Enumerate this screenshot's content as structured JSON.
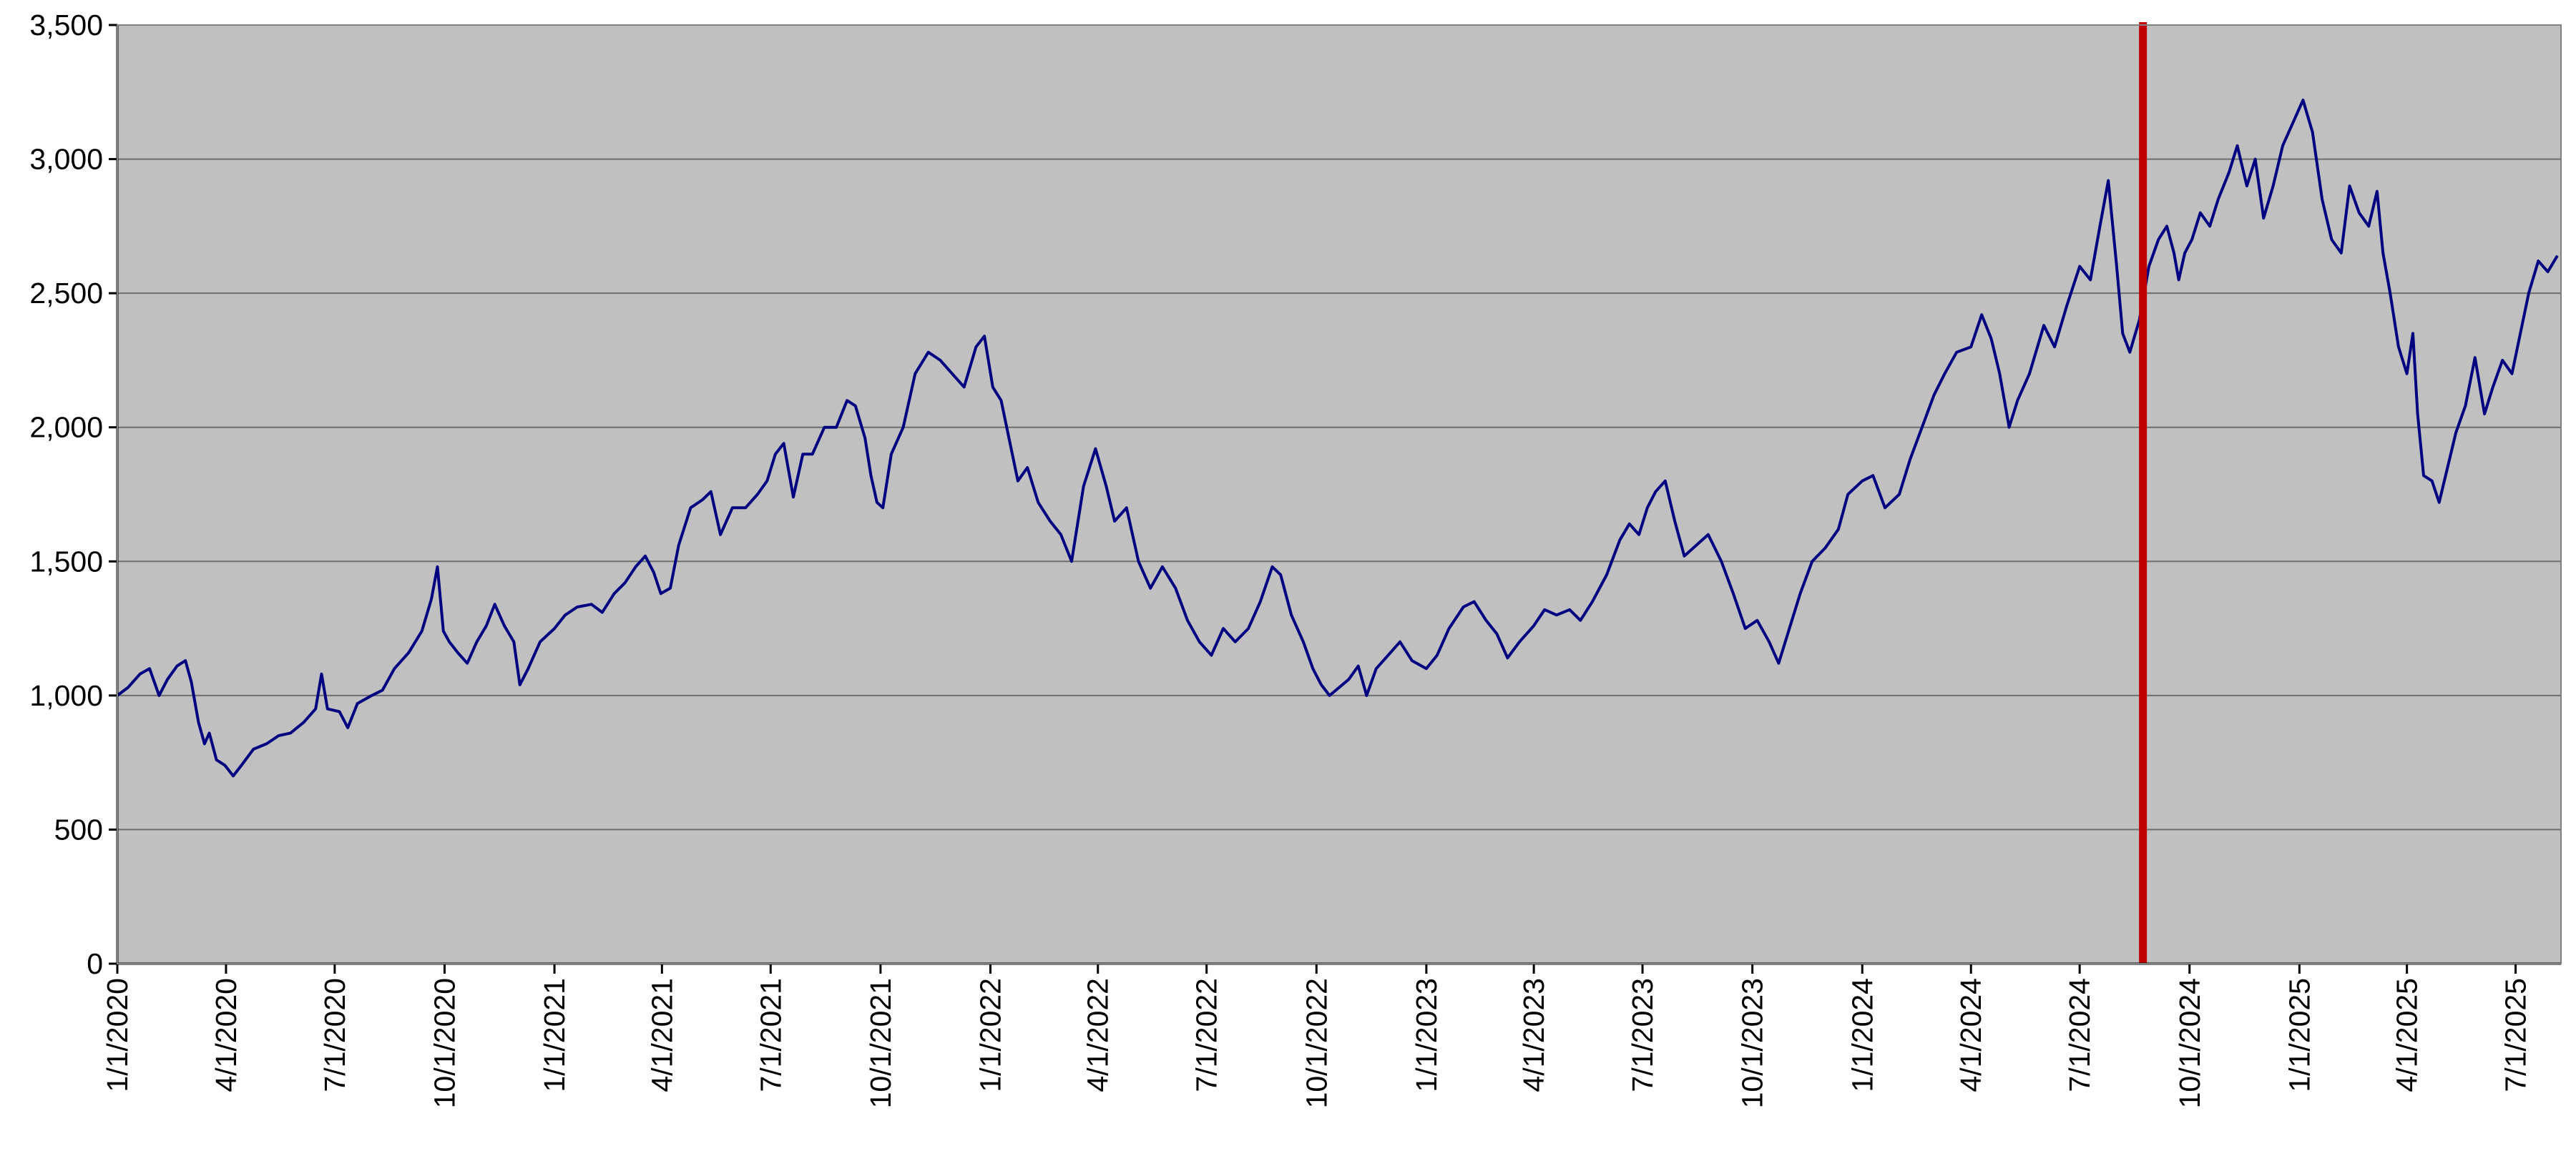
{
  "chart_data": {
    "type": "line",
    "title": "",
    "xlabel": "",
    "ylabel": "",
    "ylim": [
      0,
      3500
    ],
    "xlim": [
      "2020-01-01",
      "2025-08-08"
    ],
    "yticks": [
      0,
      500,
      1000,
      1500,
      2000,
      2500,
      3000,
      3500
    ],
    "ytick_labels": [
      "0",
      "500",
      "1,000",
      "1,500",
      "2,000",
      "2,500",
      "3,000",
      "3,500"
    ],
    "xticks": [
      "2020-01-01",
      "2020-04-01",
      "2020-07-01",
      "2020-10-01",
      "2021-01-01",
      "2021-04-01",
      "2021-07-01",
      "2021-10-01",
      "2022-01-01",
      "2022-04-01",
      "2022-07-01",
      "2022-10-01",
      "2023-01-01",
      "2023-04-01",
      "2023-07-01",
      "2023-10-01",
      "2024-01-01",
      "2024-04-01",
      "2024-07-01",
      "2024-10-01",
      "2025-01-01",
      "2025-04-01",
      "2025-07-01"
    ],
    "xtick_labels": [
      "1/1/2020",
      "4/1/2020",
      "7/1/2020",
      "10/1/2020",
      "1/1/2021",
      "4/1/2021",
      "7/1/2021",
      "10/1/2021",
      "1/1/2022",
      "4/1/2022",
      "7/1/2022",
      "10/1/2022",
      "1/1/2023",
      "4/1/2023",
      "7/1/2023",
      "10/1/2023",
      "1/1/2024",
      "4/1/2024",
      "7/1/2024",
      "10/1/2024",
      "1/1/2025",
      "4/1/2025",
      "7/1/2025"
    ],
    "grid": "horizontal",
    "legend": "none",
    "background_color": "#c0c0c0",
    "gridline_color": "#6e6e6e",
    "series": [
      {
        "color": "#000080",
        "points": [
          [
            "2020-01-01",
            1000
          ],
          [
            "2020-01-10",
            1030
          ],
          [
            "2020-01-20",
            1080
          ],
          [
            "2020-01-28",
            1100
          ],
          [
            "2020-02-05",
            1000
          ],
          [
            "2020-02-12",
            1060
          ],
          [
            "2020-02-20",
            1110
          ],
          [
            "2020-02-27",
            1130
          ],
          [
            "2020-03-03",
            1050
          ],
          [
            "2020-03-09",
            900
          ],
          [
            "2020-03-14",
            820
          ],
          [
            "2020-03-18",
            860
          ],
          [
            "2020-03-24",
            760
          ],
          [
            "2020-03-31",
            740
          ],
          [
            "2020-04-07",
            700
          ],
          [
            "2020-04-14",
            740
          ],
          [
            "2020-04-24",
            800
          ],
          [
            "2020-05-05",
            820
          ],
          [
            "2020-05-15",
            850
          ],
          [
            "2020-05-25",
            860
          ],
          [
            "2020-06-05",
            900
          ],
          [
            "2020-06-15",
            950
          ],
          [
            "2020-06-20",
            1080
          ],
          [
            "2020-06-25",
            950
          ],
          [
            "2020-07-05",
            940
          ],
          [
            "2020-07-12",
            880
          ],
          [
            "2020-07-20",
            970
          ],
          [
            "2020-08-01",
            1000
          ],
          [
            "2020-08-10",
            1020
          ],
          [
            "2020-08-20",
            1100
          ],
          [
            "2020-09-01",
            1160
          ],
          [
            "2020-09-12",
            1240
          ],
          [
            "2020-09-20",
            1360
          ],
          [
            "2020-09-25",
            1480
          ],
          [
            "2020-09-30",
            1240
          ],
          [
            "2020-10-05",
            1200
          ],
          [
            "2020-10-12",
            1160
          ],
          [
            "2020-10-20",
            1120
          ],
          [
            "2020-10-28",
            1200
          ],
          [
            "2020-11-05",
            1260
          ],
          [
            "2020-11-12",
            1340
          ],
          [
            "2020-11-20",
            1260
          ],
          [
            "2020-11-28",
            1200
          ],
          [
            "2020-12-03",
            1040
          ],
          [
            "2020-12-10",
            1100
          ],
          [
            "2020-12-20",
            1200
          ],
          [
            "2021-01-01",
            1250
          ],
          [
            "2021-01-10",
            1300
          ],
          [
            "2021-01-20",
            1330
          ],
          [
            "2021-02-01",
            1340
          ],
          [
            "2021-02-10",
            1310
          ],
          [
            "2021-02-20",
            1380
          ],
          [
            "2021-03-01",
            1420
          ],
          [
            "2021-03-10",
            1480
          ],
          [
            "2021-03-18",
            1520
          ],
          [
            "2021-03-25",
            1460
          ],
          [
            "2021-03-31",
            1380
          ],
          [
            "2021-04-08",
            1400
          ],
          [
            "2021-04-15",
            1560
          ],
          [
            "2021-04-25",
            1700
          ],
          [
            "2021-05-05",
            1730
          ],
          [
            "2021-05-12",
            1760
          ],
          [
            "2021-05-20",
            1600
          ],
          [
            "2021-05-30",
            1700
          ],
          [
            "2021-06-10",
            1700
          ],
          [
            "2021-06-20",
            1750
          ],
          [
            "2021-06-28",
            1800
          ],
          [
            "2021-07-05",
            1900
          ],
          [
            "2021-07-12",
            1940
          ],
          [
            "2021-07-20",
            1740
          ],
          [
            "2021-07-28",
            1900
          ],
          [
            "2021-08-05",
            1900
          ],
          [
            "2021-08-15",
            2000
          ],
          [
            "2021-08-25",
            2000
          ],
          [
            "2021-09-03",
            2100
          ],
          [
            "2021-09-10",
            2080
          ],
          [
            "2021-09-18",
            1960
          ],
          [
            "2021-09-23",
            1820
          ],
          [
            "2021-09-28",
            1720
          ],
          [
            "2021-10-03",
            1700
          ],
          [
            "2021-10-10",
            1900
          ],
          [
            "2021-10-20",
            2000
          ],
          [
            "2021-10-30",
            2200
          ],
          [
            "2021-11-10",
            2280
          ],
          [
            "2021-11-20",
            2250
          ],
          [
            "2021-11-30",
            2200
          ],
          [
            "2021-12-10",
            2150
          ],
          [
            "2021-12-20",
            2300
          ],
          [
            "2021-12-27",
            2340
          ],
          [
            "2022-01-03",
            2150
          ],
          [
            "2022-01-10",
            2100
          ],
          [
            "2022-01-17",
            1950
          ],
          [
            "2022-01-24",
            1800
          ],
          [
            "2022-02-01",
            1850
          ],
          [
            "2022-02-10",
            1720
          ],
          [
            "2022-02-20",
            1650
          ],
          [
            "2022-03-01",
            1600
          ],
          [
            "2022-03-10",
            1500
          ],
          [
            "2022-03-20",
            1780
          ],
          [
            "2022-03-30",
            1920
          ],
          [
            "2022-04-08",
            1780
          ],
          [
            "2022-04-15",
            1650
          ],
          [
            "2022-04-25",
            1700
          ],
          [
            "2022-05-05",
            1500
          ],
          [
            "2022-05-15",
            1400
          ],
          [
            "2022-05-25",
            1480
          ],
          [
            "2022-06-05",
            1400
          ],
          [
            "2022-06-15",
            1280
          ],
          [
            "2022-06-25",
            1200
          ],
          [
            "2022-07-05",
            1150
          ],
          [
            "2022-07-15",
            1250
          ],
          [
            "2022-07-25",
            1200
          ],
          [
            "2022-08-05",
            1250
          ],
          [
            "2022-08-15",
            1350
          ],
          [
            "2022-08-25",
            1480
          ],
          [
            "2022-09-01",
            1450
          ],
          [
            "2022-09-10",
            1300
          ],
          [
            "2022-09-20",
            1200
          ],
          [
            "2022-09-28",
            1100
          ],
          [
            "2022-10-05",
            1040
          ],
          [
            "2022-10-12",
            1000
          ],
          [
            "2022-10-20",
            1030
          ],
          [
            "2022-10-28",
            1060
          ],
          [
            "2022-11-05",
            1110
          ],
          [
            "2022-11-12",
            1000
          ],
          [
            "2022-11-20",
            1100
          ],
          [
            "2022-11-30",
            1150
          ],
          [
            "2022-12-10",
            1200
          ],
          [
            "2022-12-20",
            1130
          ],
          [
            "2023-01-01",
            1100
          ],
          [
            "2023-01-10",
            1150
          ],
          [
            "2023-01-20",
            1250
          ],
          [
            "2023-02-01",
            1330
          ],
          [
            "2023-02-10",
            1350
          ],
          [
            "2023-02-20",
            1280
          ],
          [
            "2023-03-01",
            1230
          ],
          [
            "2023-03-10",
            1140
          ],
          [
            "2023-03-20",
            1200
          ],
          [
            "2023-04-01",
            1260
          ],
          [
            "2023-04-10",
            1320
          ],
          [
            "2023-04-20",
            1300
          ],
          [
            "2023-05-01",
            1320
          ],
          [
            "2023-05-10",
            1280
          ],
          [
            "2023-05-20",
            1350
          ],
          [
            "2023-06-01",
            1450
          ],
          [
            "2023-06-12",
            1580
          ],
          [
            "2023-06-20",
            1640
          ],
          [
            "2023-06-28",
            1600
          ],
          [
            "2023-07-05",
            1700
          ],
          [
            "2023-07-12",
            1760
          ],
          [
            "2023-07-20",
            1800
          ],
          [
            "2023-07-28",
            1650
          ],
          [
            "2023-08-05",
            1520
          ],
          [
            "2023-08-15",
            1560
          ],
          [
            "2023-08-25",
            1600
          ],
          [
            "2023-09-05",
            1500
          ],
          [
            "2023-09-15",
            1380
          ],
          [
            "2023-09-25",
            1250
          ],
          [
            "2023-10-05",
            1280
          ],
          [
            "2023-10-15",
            1200
          ],
          [
            "2023-10-23",
            1120
          ],
          [
            "2023-11-01",
            1250
          ],
          [
            "2023-11-10",
            1380
          ],
          [
            "2023-11-20",
            1500
          ],
          [
            "2023-12-01",
            1550
          ],
          [
            "2023-12-12",
            1620
          ],
          [
            "2023-12-20",
            1750
          ],
          [
            "2024-01-01",
            1800
          ],
          [
            "2024-01-10",
            1820
          ],
          [
            "2024-01-20",
            1700
          ],
          [
            "2024-02-01",
            1750
          ],
          [
            "2024-02-10",
            1880
          ],
          [
            "2024-02-20",
            2000
          ],
          [
            "2024-03-01",
            2120
          ],
          [
            "2024-03-10",
            2200
          ],
          [
            "2024-03-20",
            2280
          ],
          [
            "2024-04-01",
            2300
          ],
          [
            "2024-04-10",
            2420
          ],
          [
            "2024-04-18",
            2330
          ],
          [
            "2024-04-25",
            2200
          ],
          [
            "2024-05-03",
            2000
          ],
          [
            "2024-05-10",
            2100
          ],
          [
            "2024-05-20",
            2200
          ],
          [
            "2024-06-01",
            2380
          ],
          [
            "2024-06-10",
            2300
          ],
          [
            "2024-06-20",
            2450
          ],
          [
            "2024-07-01",
            2600
          ],
          [
            "2024-07-10",
            2550
          ],
          [
            "2024-07-18",
            2750
          ],
          [
            "2024-07-25",
            2920
          ],
          [
            "2024-08-01",
            2600
          ],
          [
            "2024-08-06",
            2350
          ],
          [
            "2024-08-12",
            2280
          ],
          [
            "2024-08-20",
            2400
          ],
          [
            "2024-08-28",
            2600
          ],
          [
            "2024-09-05",
            2700
          ],
          [
            "2024-09-12",
            2750
          ],
          [
            "2024-09-18",
            2650
          ],
          [
            "2024-09-22",
            2550
          ],
          [
            "2024-09-27",
            2650
          ],
          [
            "2024-10-03",
            2700
          ],
          [
            "2024-10-10",
            2800
          ],
          [
            "2024-10-18",
            2750
          ],
          [
            "2024-10-25",
            2850
          ],
          [
            "2024-11-03",
            2950
          ],
          [
            "2024-11-10",
            3050
          ],
          [
            "2024-11-18",
            2900
          ],
          [
            "2024-11-25",
            3000
          ],
          [
            "2024-12-02",
            2780
          ],
          [
            "2024-12-10",
            2900
          ],
          [
            "2024-12-18",
            3050
          ],
          [
            "2024-12-28",
            3150
          ],
          [
            "2025-01-04",
            3220
          ],
          [
            "2025-01-12",
            3100
          ],
          [
            "2025-01-20",
            2850
          ],
          [
            "2025-01-28",
            2700
          ],
          [
            "2025-02-05",
            2650
          ],
          [
            "2025-02-12",
            2900
          ],
          [
            "2025-02-20",
            2800
          ],
          [
            "2025-02-28",
            2750
          ],
          [
            "2025-03-07",
            2880
          ],
          [
            "2025-03-12",
            2650
          ],
          [
            "2025-03-18",
            2500
          ],
          [
            "2025-03-25",
            2300
          ],
          [
            "2025-04-01",
            2200
          ],
          [
            "2025-04-06",
            2350
          ],
          [
            "2025-04-10",
            2050
          ],
          [
            "2025-04-15",
            1820
          ],
          [
            "2025-04-22",
            1800
          ],
          [
            "2025-04-28",
            1720
          ],
          [
            "2025-05-05",
            1850
          ],
          [
            "2025-05-12",
            1980
          ],
          [
            "2025-05-20",
            2080
          ],
          [
            "2025-05-28",
            2260
          ],
          [
            "2025-06-05",
            2050
          ],
          [
            "2025-06-12",
            2150
          ],
          [
            "2025-06-20",
            2250
          ],
          [
            "2025-06-28",
            2200
          ],
          [
            "2025-07-05",
            2350
          ],
          [
            "2025-07-12",
            2500
          ],
          [
            "2025-07-20",
            2620
          ],
          [
            "2025-07-28",
            2580
          ],
          [
            "2025-08-05",
            2640
          ]
        ]
      }
    ],
    "annotations": [
      {
        "type": "vertical-line",
        "x": "2024-08-23",
        "color": "#c00000"
      }
    ]
  }
}
